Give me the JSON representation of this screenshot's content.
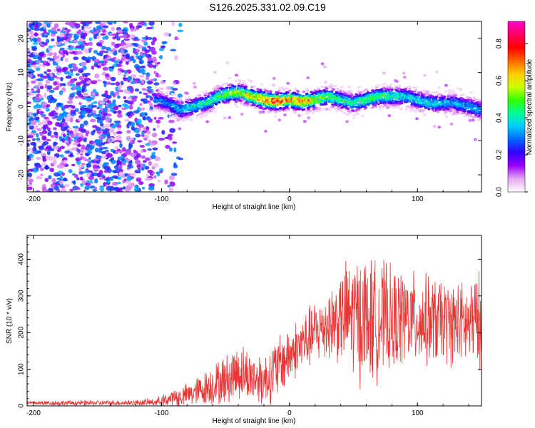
{
  "title": "S126.2025.331.02.09.C19",
  "chart_data": [
    {
      "type": "heatmap",
      "xlabel": "Height of straight line (km)",
      "ylabel": "Frequency (Hz)",
      "xlim": [
        -205,
        150
      ],
      "ylim": [
        -25,
        25
      ],
      "xticks": [
        -200,
        -100,
        0,
        100
      ],
      "yticks": [
        -20,
        -10,
        0,
        10,
        20
      ],
      "colorbar": {
        "label": "Normalized spectral amplitude",
        "range": [
          0.0,
          0.92
        ],
        "ticks": [
          "0.0",
          "0.2",
          "0.4",
          "0.6",
          "0.8"
        ],
        "colormap": [
          "#ffffff",
          "#e8a8f0",
          "#9900ff",
          "#3300ff",
          "#0066ff",
          "#00ccff",
          "#00ff99",
          "#33ff00",
          "#ccff00",
          "#ffcc00",
          "#ff6600",
          "#ff0000",
          "#ff0066",
          "#ff00cc"
        ]
      },
      "ridge": {
        "x": [
          -105,
          -95,
          -85,
          -75,
          -65,
          -55,
          -45,
          -38,
          -30,
          -20,
          -10,
          0,
          10,
          20,
          30,
          40,
          50,
          60,
          70,
          80,
          90,
          100,
          110,
          120,
          130,
          140,
          150
        ],
        "frequency": [
          2,
          1,
          -1,
          0,
          1,
          3,
          4,
          4,
          3,
          2,
          1.5,
          2,
          1.5,
          2,
          3,
          2,
          1,
          2,
          3,
          3,
          3,
          2,
          1,
          1,
          1,
          0,
          -1
        ],
        "peak_amplitude": [
          0.35,
          0.35,
          0.4,
          0.45,
          0.5,
          0.55,
          0.6,
          0.65,
          0.7,
          0.8,
          0.9,
          0.75,
          0.8,
          0.65,
          0.55,
          0.5,
          0.5,
          0.55,
          0.55,
          0.5,
          0.45,
          0.45,
          0.45,
          0.4,
          0.4,
          0.4,
          0.4
        ]
      },
      "noise_region_x": [
        -205,
        -85
      ]
    },
    {
      "type": "line",
      "xlabel": "Height of straight line (km)",
      "ylabel": "SNR (10 * v/v)",
      "xlim": [
        -205,
        150
      ],
      "ylim": [
        0,
        465
      ],
      "xticks": [
        -200,
        -100,
        0,
        100
      ],
      "yticks": [
        0,
        100,
        200,
        300,
        400
      ],
      "series": [
        {
          "color": "#ee3333",
          "x": [
            -205,
            -180,
            -160,
            -140,
            -120,
            -105,
            -95,
            -85,
            -75,
            -65,
            -55,
            -45,
            -40,
            -30,
            -20,
            -10,
            0,
            10,
            20,
            30,
            40,
            45,
            50,
            55,
            60,
            65,
            70,
            75,
            80,
            90,
            100,
            110,
            120,
            130,
            140,
            150
          ],
          "center": [
            8,
            8,
            8,
            8,
            9,
            10,
            18,
            25,
            35,
            50,
            65,
            80,
            95,
            80,
            70,
            100,
            140,
            170,
            200,
            225,
            240,
            250,
            245,
            240,
            235,
            230,
            235,
            240,
            230,
            240,
            235,
            230,
            230,
            225,
            220,
            235
          ],
          "spread": [
            7,
            8,
            8,
            8,
            9,
            12,
            20,
            30,
            40,
            55,
            70,
            80,
            90,
            80,
            80,
            100,
            90,
            90,
            100,
            110,
            140,
            170,
            190,
            200,
            200,
            190,
            180,
            170,
            160,
            150,
            140,
            140,
            130,
            130,
            130,
            150
          ]
        }
      ]
    }
  ]
}
